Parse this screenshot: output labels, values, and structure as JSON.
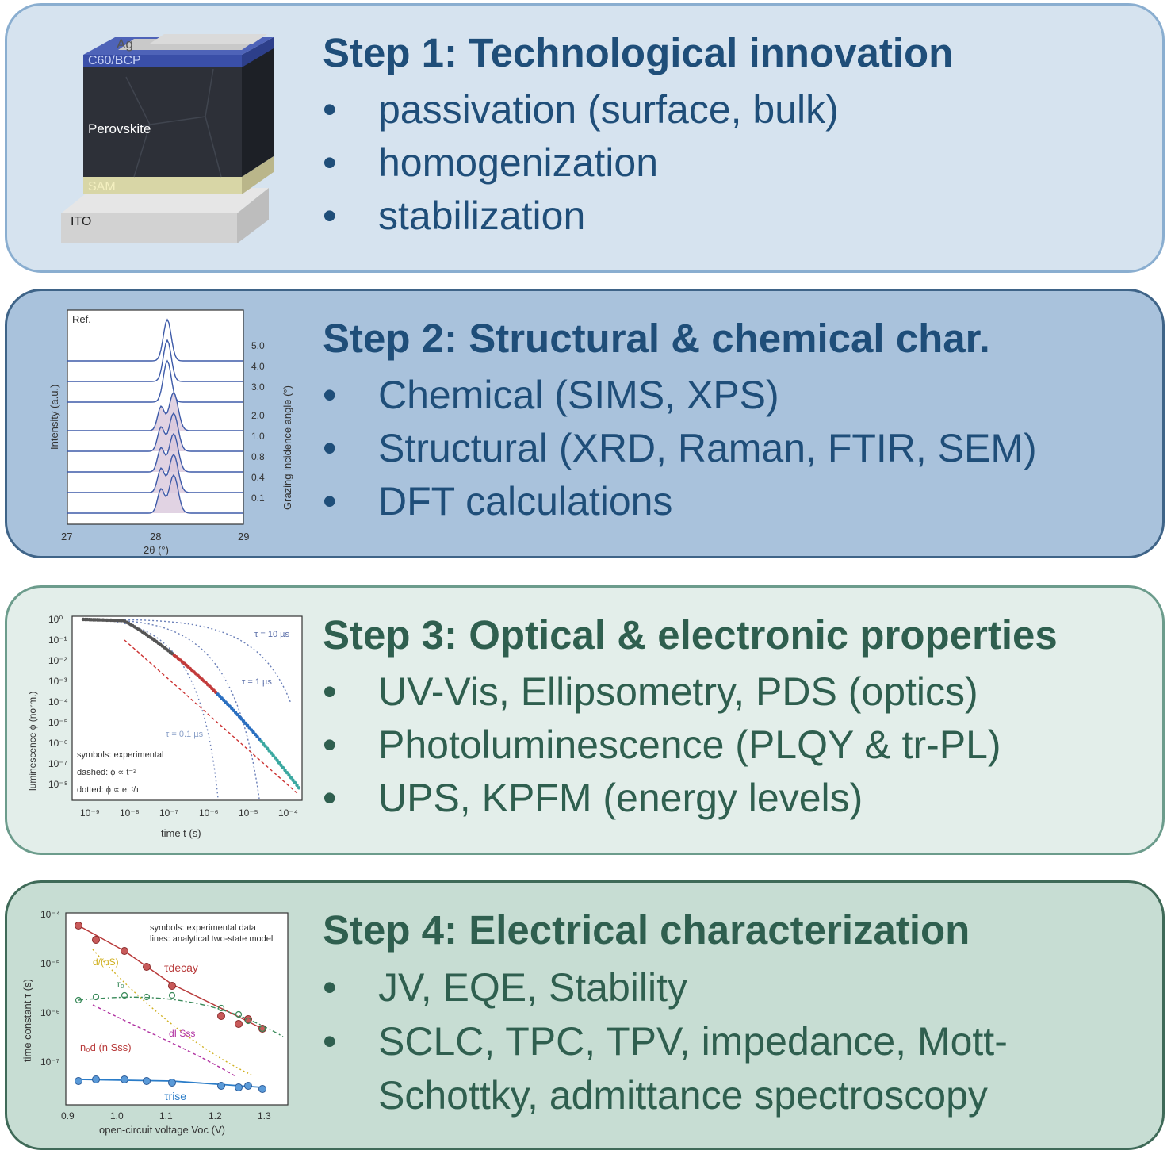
{
  "steps": [
    {
      "title": "Step 1: Technological innovation",
      "bullets": [
        "passivation (surface, bulk)",
        "homogenization",
        "stabilization"
      ],
      "figure": {
        "layers": [
          "Ag",
          "C60/BCP",
          "Perovskite",
          "SAM",
          "ITO"
        ]
      }
    },
    {
      "title": "Step 2: Structural & chemical char.",
      "bullets": [
        "Chemical (SIMS, XPS)",
        "Structural (XRD, Raman, FTIR, SEM)",
        "DFT calculations"
      ],
      "figure": {
        "ref_label": "Ref.",
        "ylabel": "Intensity (a.u.)",
        "y2label": "Grazing incidence angle (°)",
        "xlabel": "2θ (°)",
        "xticks": [
          "27",
          "28",
          "29"
        ],
        "angles": [
          "5.0",
          "4.0",
          "3.0",
          "2.0",
          "1.0",
          "0.8",
          "0.4",
          "0.1"
        ]
      }
    },
    {
      "title": "Step 3: Optical & electronic properties",
      "bullets": [
        "UV-Vis, Ellipsometry, PDS (optics)",
        "Photoluminescence (PLQY & tr-PL)",
        "UPS, KPFM (energy levels)"
      ],
      "figure": {
        "ylabel": "luminescence ϕ (norm.)",
        "xlabel": "time t (s)",
        "yticks": [
          "10⁰",
          "10⁻¹",
          "10⁻²",
          "10⁻³",
          "10⁻⁴",
          "10⁻⁵",
          "10⁻⁶",
          "10⁻⁷",
          "10⁻⁸"
        ],
        "xticks": [
          "10⁻⁹",
          "10⁻⁸",
          "10⁻⁷",
          "10⁻⁶",
          "10⁻⁵",
          "10⁻⁴"
        ],
        "tau_labels": [
          "τ = 10 µs",
          "τ = 1 µs",
          "τ = 0.1 µs"
        ],
        "legend": [
          "symbols: experimental",
          "dashed: ϕ ∝ t⁻²",
          "dotted: ϕ ∝ e⁻ᵗ/τ"
        ]
      }
    },
    {
      "title": "Step 4: Electrical characterization",
      "bullets": [
        "JV, EQE, Stability",
        "SCLC, TPC, TPV, impedance, Mott-",
        "Schottky, admittance spectroscopy"
      ],
      "figure": {
        "ylabel": "time constant τ (s)",
        "xlabel": "open-circuit voltage Voc (V)",
        "yticks": [
          "10⁻⁴",
          "10⁻⁵",
          "10⁻⁶",
          "10⁻⁷"
        ],
        "xticks": [
          "0.9",
          "1.0",
          "1.1",
          "1.2",
          "1.3"
        ],
        "legend": [
          "symbols: experimental data",
          "lines: analytical two-state model"
        ],
        "curve_labels": [
          "τdecay",
          "τrise",
          "τ₀",
          "d/(nS)",
          "dI Sss",
          "n₀d (n Sss)"
        ]
      }
    }
  ],
  "bullet_symbol": "•"
}
